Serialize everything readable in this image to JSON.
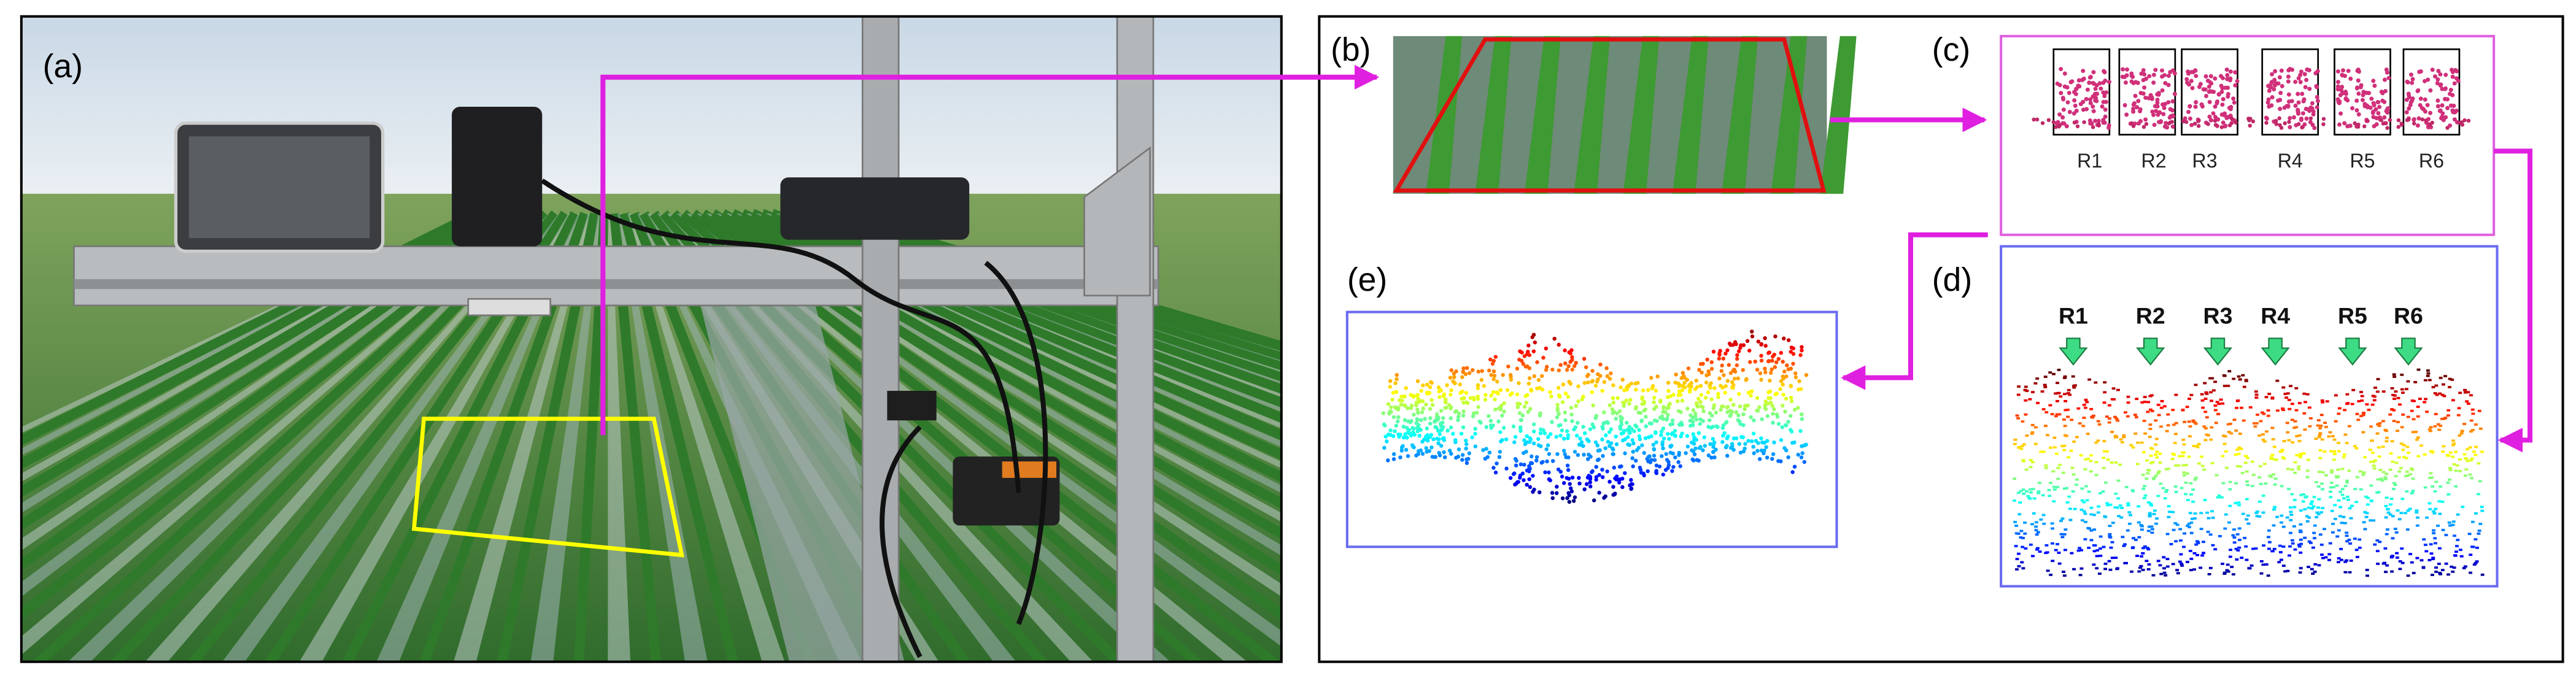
{
  "panels": {
    "a": {
      "label": "(a)"
    },
    "b": {
      "label": "(b)"
    },
    "c": {
      "label": "(c)",
      "rows": [
        "R1",
        "R2",
        "R3",
        "R4",
        "R5",
        "R6"
      ]
    },
    "d": {
      "label": "(d)",
      "rows": [
        "R1",
        "R2",
        "R3",
        "R4",
        "R5",
        "R6"
      ]
    },
    "e": {
      "label": "(e)"
    }
  }
}
